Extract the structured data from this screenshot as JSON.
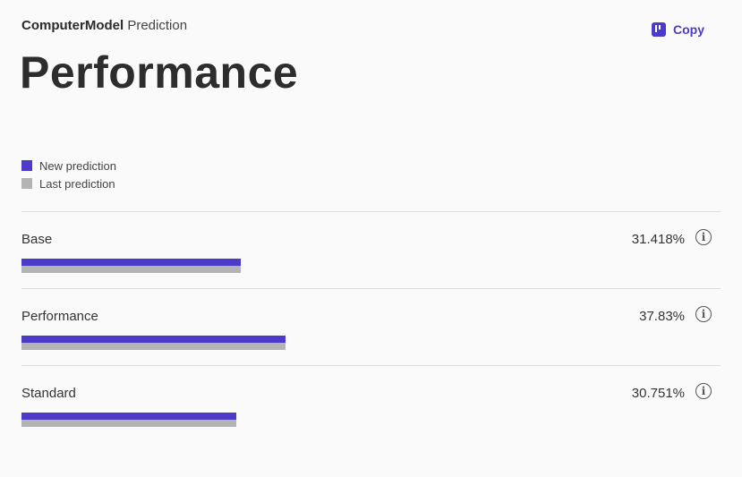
{
  "header": {
    "brand": "ComputerModel",
    "subtitle": "Prediction",
    "copy_label": "Copy"
  },
  "page_title": "Performance",
  "colors": {
    "accent": "#4b3bc8",
    "new_prediction": "#4b3bc8",
    "last_prediction": "#b4b4b4"
  },
  "legend": [
    {
      "label": "New prediction",
      "color": "#4b3bc8"
    },
    {
      "label": "Last prediction",
      "color": "#b4b4b4"
    }
  ],
  "chart_data": {
    "type": "bar",
    "orientation": "horizontal",
    "categories": [
      "Base",
      "Performance",
      "Standard"
    ],
    "value_labels": [
      "31.418%",
      "37.83%",
      "30.751%"
    ],
    "series": [
      {
        "name": "New prediction",
        "values": [
          31.418,
          37.83,
          30.751
        ]
      },
      {
        "name": "Last prediction",
        "values": [
          31.418,
          37.83,
          30.751
        ]
      }
    ],
    "xlim": [
      0,
      100
    ],
    "legend_position": "top-left"
  }
}
